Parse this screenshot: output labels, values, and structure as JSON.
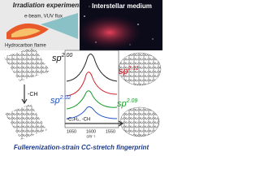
{
  "top": {
    "irradiation": "Irradiation experiments",
    "flux": "e-beam, VUV flux",
    "flame": "Hydrocarbon flame",
    "ism": "Interstellar medium"
  },
  "spectra": {
    "labels": [
      {
        "base": "sp",
        "exp": "2.00"
      },
      {
        "base": "sp",
        "exp": "2.11"
      },
      {
        "base": "sp",
        "exp": "2.02"
      },
      {
        "base": "sp",
        "exp": "2.09"
      }
    ],
    "ticks": [
      "1650",
      "1600",
      "1550"
    ],
    "unit": "cm⁻¹"
  },
  "steps": {
    "first": "-CH",
    "second": "-C₂H₂, -CH"
  },
  "caption": "Fullerenization-strain CC-stretch fingerprint"
}
